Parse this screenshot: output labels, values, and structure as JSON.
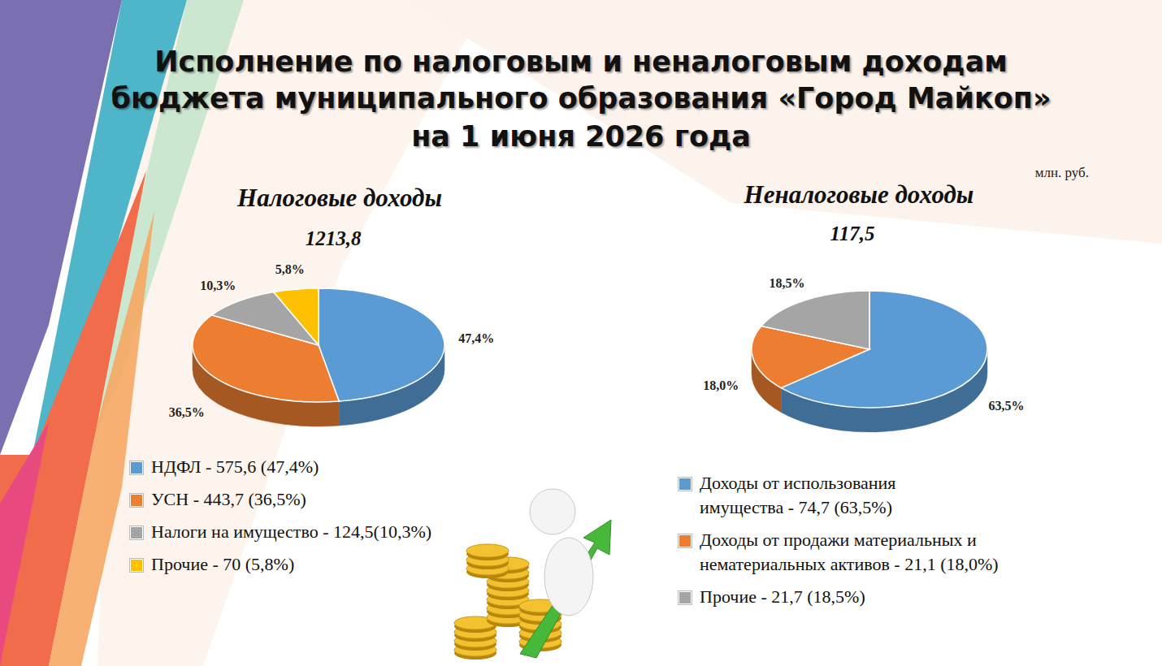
{
  "title": [
    "Исполнение по налоговым и неналоговым доходам",
    "бюджета муниципального образования «Город Майкоп»",
    "на 1 июня 2026 года"
  ],
  "unit": "млн. руб.",
  "chart_data": [
    {
      "type": "pie",
      "title": "Налоговые доходы",
      "subtitle": "1213,8",
      "categories": [
        "НДФЛ - 575,6 (47,4%)",
        "УСН - 443,7 (36,5%)",
        "Налоги на имущество - 124,5(10,3%)",
        "Прочие - 70 (5,8%)"
      ],
      "values": [
        47.4,
        36.5,
        10.3,
        5.8
      ],
      "value_labels": [
        "47,4%",
        "36,5%",
        "10,3%",
        "5,8%"
      ],
      "colors": [
        "#5b9bd5",
        "#ed7d31",
        "#a5a5a5",
        "#ffc000"
      ],
      "data_labels": true,
      "legend": "bottom"
    },
    {
      "type": "pie",
      "title": "Неналоговые доходы",
      "subtitle": "117,5",
      "categories": [
        "Доходы от использования\nимущества - 74,7 (63,5%)",
        "Доходы от продажи материальных и\nнематериальных активов - 21,1 (18,0%)",
        "Прочие - 21,7 (18,5%)"
      ],
      "values": [
        63.5,
        18.0,
        18.5
      ],
      "value_labels": [
        "63,5%",
        "18,0%",
        "18,5%"
      ],
      "colors": [
        "#5b9bd5",
        "#ed7d31",
        "#a5a5a5"
      ],
      "data_labels": true,
      "legend": "bottom"
    }
  ]
}
